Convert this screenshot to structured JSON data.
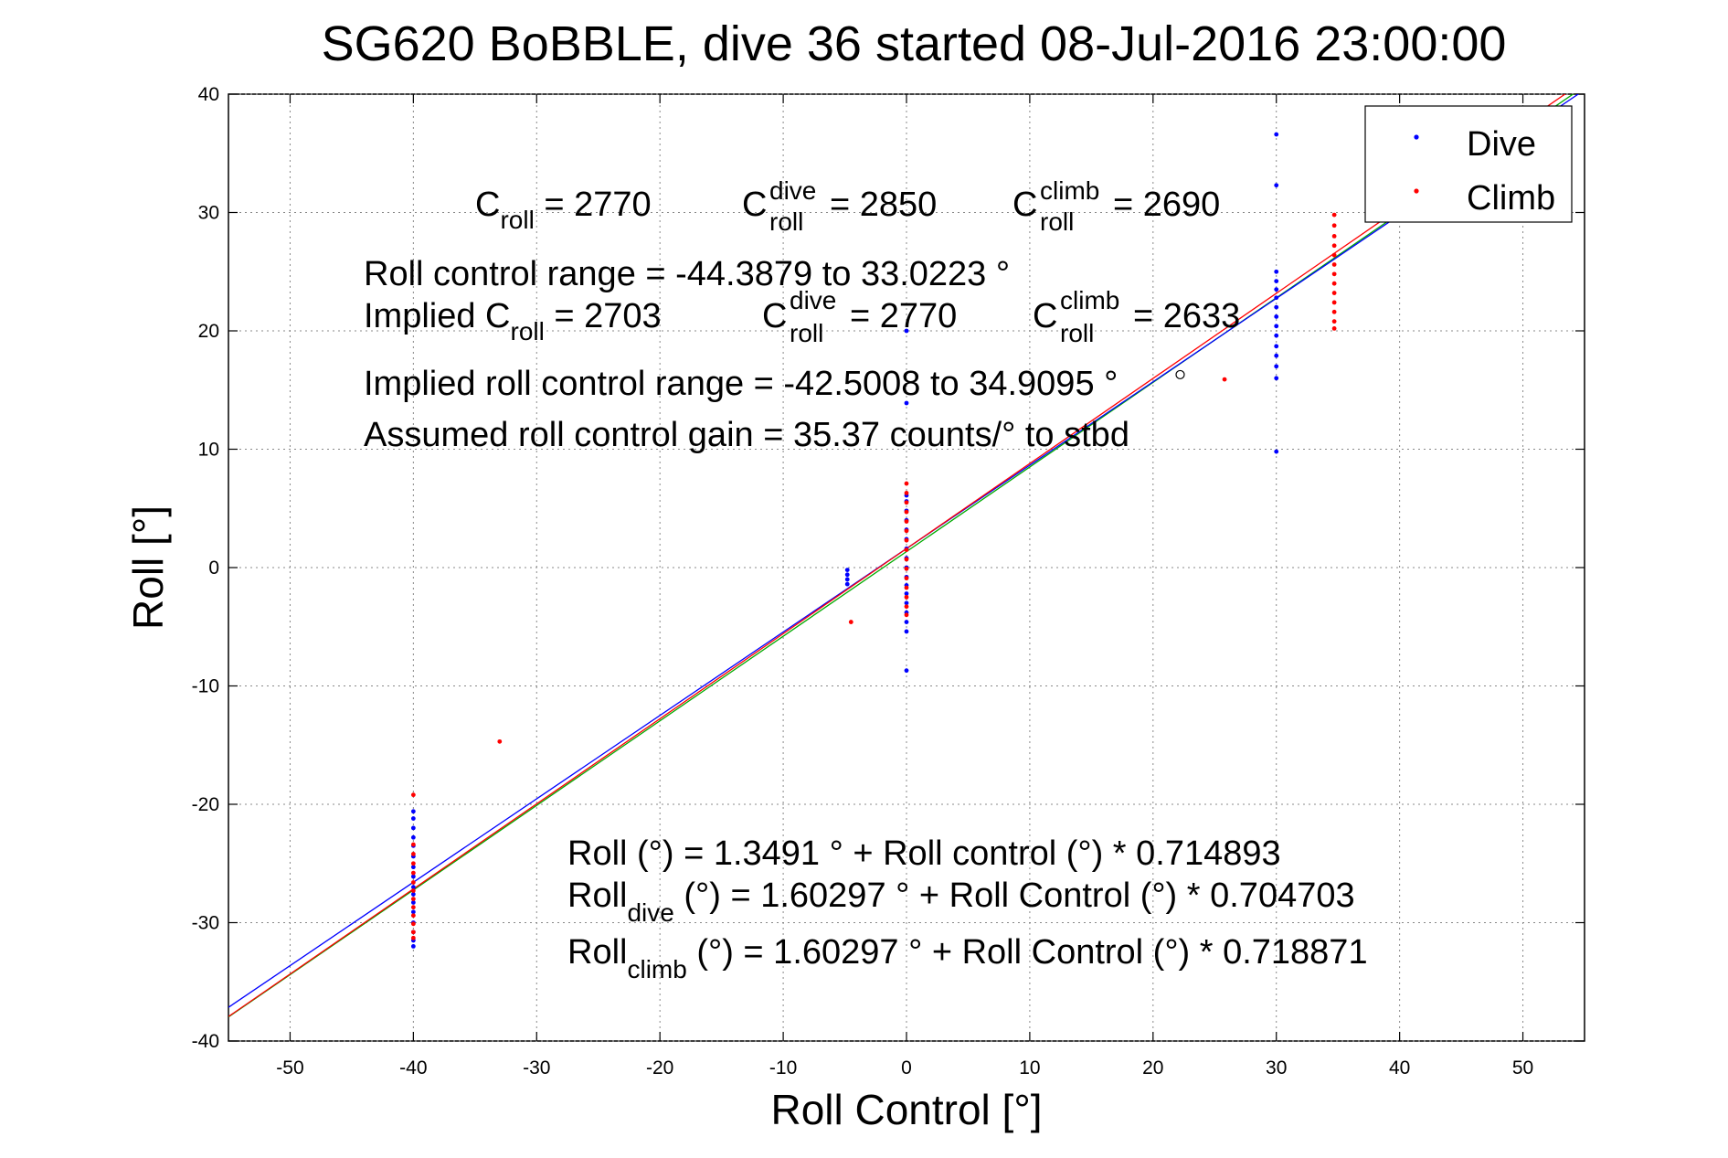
{
  "chart_data": {
    "type": "scatter",
    "title": "SG620 BoBBLE, dive 36 started 08-Jul-2016 23:00:00",
    "xlabel": "Roll Control [°]",
    "ylabel": "Roll [°]",
    "xlim": [
      -55,
      55
    ],
    "ylim": [
      -40,
      40
    ],
    "xticks": [
      -50,
      -40,
      -30,
      -20,
      -10,
      0,
      10,
      20,
      30,
      40,
      50
    ],
    "yticks": [
      -40,
      -30,
      -20,
      -10,
      0,
      10,
      20,
      30,
      40
    ],
    "grid": "dotted",
    "legend": {
      "placement": "top-right",
      "entries": [
        "Dive",
        "Climb"
      ]
    },
    "colors": {
      "dive": "#0000ff",
      "climb": "#ff0000",
      "fit_all": "#00aa00",
      "fit_dive": "#0000ff",
      "fit_climb": "#ff0000"
    },
    "series": [
      {
        "name": "Dive",
        "color": "#0000ff",
        "points": [
          [
            -40,
            -20.6
          ],
          [
            -40,
            -21.2
          ],
          [
            -40,
            -22.0
          ],
          [
            -40,
            -22.8
          ],
          [
            -40,
            -23.5
          ],
          [
            -40,
            -24.4
          ],
          [
            -40,
            -25.3
          ],
          [
            -40,
            -26.1
          ],
          [
            -40,
            -27.0
          ],
          [
            -40,
            -27.6
          ],
          [
            -40,
            -28.3
          ],
          [
            -40,
            -29.1
          ],
          [
            -40,
            -30.0
          ],
          [
            -40,
            -30.8
          ],
          [
            -40,
            -31.5
          ],
          [
            -40,
            -32.0
          ],
          [
            -4.8,
            -0.2
          ],
          [
            -4.8,
            -0.6
          ],
          [
            -4.8,
            -1.0
          ],
          [
            -4.8,
            -1.4
          ],
          [
            0,
            -8.7
          ],
          [
            0,
            -5.4
          ],
          [
            0,
            -4.6
          ],
          [
            0,
            -3.8
          ],
          [
            0,
            -3.0
          ],
          [
            0,
            -2.2
          ],
          [
            0,
            -1.5
          ],
          [
            0,
            -0.8
          ],
          [
            0,
            0.0
          ],
          [
            0,
            0.8
          ],
          [
            0,
            1.6
          ],
          [
            0,
            2.4
          ],
          [
            0,
            3.2
          ],
          [
            0,
            4.0
          ],
          [
            0,
            4.8
          ],
          [
            0,
            5.6
          ],
          [
            0,
            6.1
          ],
          [
            0,
            13.9
          ],
          [
            0,
            20.0
          ],
          [
            30,
            36.6
          ],
          [
            30,
            32.3
          ],
          [
            30,
            25.0
          ],
          [
            30,
            24.2
          ],
          [
            30,
            23.5
          ],
          [
            30,
            22.8
          ],
          [
            30,
            22.0
          ],
          [
            30,
            21.2
          ],
          [
            30,
            20.4
          ],
          [
            30,
            19.6
          ],
          [
            30,
            18.7
          ],
          [
            30,
            17.9
          ],
          [
            30,
            17.0
          ],
          [
            30,
            16.0
          ],
          [
            30,
            9.8
          ]
        ]
      },
      {
        "name": "Climb",
        "color": "#ff0000",
        "points": [
          [
            -40,
            -19.2
          ],
          [
            -40,
            -23.4
          ],
          [
            -40,
            -24.2
          ],
          [
            -40,
            -25.0
          ],
          [
            -40,
            -25.8
          ],
          [
            -40,
            -26.6
          ],
          [
            -40,
            -27.3
          ],
          [
            -40,
            -28.0
          ],
          [
            -40,
            -28.7
          ],
          [
            -40,
            -29.4
          ],
          [
            -40,
            -30.1
          ],
          [
            -40,
            -30.8
          ],
          [
            -40,
            -31.3
          ],
          [
            -33,
            -14.7
          ],
          [
            -4.5,
            -4.6
          ],
          [
            0,
            -4.0
          ],
          [
            0,
            -3.3
          ],
          [
            0,
            -2.5
          ],
          [
            0,
            -1.7
          ],
          [
            0,
            -0.9
          ],
          [
            0,
            -0.1
          ],
          [
            0,
            0.7
          ],
          [
            0,
            1.5
          ],
          [
            0,
            2.3
          ],
          [
            0,
            3.1
          ],
          [
            0,
            3.9
          ],
          [
            0,
            4.7
          ],
          [
            0,
            5.5
          ],
          [
            0,
            6.3
          ],
          [
            0,
            7.1
          ],
          [
            25.8,
            15.9
          ],
          [
            34.7,
            29.8
          ],
          [
            34.7,
            28.9
          ],
          [
            34.7,
            28.0
          ],
          [
            34.7,
            27.2
          ],
          [
            34.7,
            26.4
          ],
          [
            34.7,
            25.6
          ],
          [
            34.7,
            24.8
          ],
          [
            34.7,
            24.0
          ],
          [
            34.7,
            23.2
          ],
          [
            34.7,
            22.4
          ],
          [
            34.7,
            21.6
          ],
          [
            34.7,
            20.8
          ],
          [
            34.7,
            20.2
          ]
        ]
      }
    ],
    "fit_lines": [
      {
        "label": "all",
        "color": "#00aa00",
        "intercept": 1.3491,
        "slope": 0.714893
      },
      {
        "label": "dive",
        "color": "#0000ff",
        "intercept": 1.60297,
        "slope": 0.704703
      },
      {
        "label": "climb",
        "color": "#ff0000",
        "intercept": 1.60297,
        "slope": 0.718871
      }
    ],
    "marker": {
      "x": 22.2,
      "y": 16.3
    }
  },
  "annotations": {
    "c_roll": "C",
    "c_roll_sub": "roll",
    "c_roll_val": " = 2770",
    "c_dive": "C",
    "c_dive_sup": "dive",
    "c_dive_sub": "roll",
    "c_dive_val": " = 2850",
    "c_climb": "C",
    "c_climb_sup": "climb",
    "c_climb_sub": "roll",
    "c_climb_val": " = 2690",
    "range_line": "Roll control range = -44.3879 to 33.0223 °",
    "implied_prefix": "Implied C",
    "implied_sub": "roll",
    "implied_val": " = 2703",
    "implied_dive": "C",
    "implied_dive_sup": "dive",
    "implied_dive_sub": "roll",
    "implied_dive_val": " = 2770",
    "implied_climb": "C",
    "implied_climb_sup": "climb",
    "implied_climb_sub": "roll",
    "implied_climb_val": " = 2633",
    "implied_range": "Implied roll control range = -42.5008 to 34.9095 °",
    "gain": "Assumed roll control gain = 35.37 counts/° to stbd",
    "eq1": "Roll (°) = 1.3491 ° + Roll control (°) * 0.714893",
    "eq2_prefix": "Roll",
    "eq2_sub": "dive",
    "eq2_rest": " (°) = 1.60297 ° + Roll Control (°) * 0.704703",
    "eq3_prefix": "Roll",
    "eq3_sub": "climb",
    "eq3_rest": " (°) = 1.60297 ° + Roll Control (°) * 0.718871"
  }
}
